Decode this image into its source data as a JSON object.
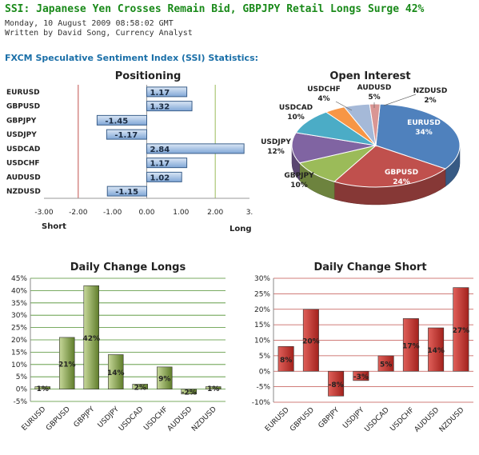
{
  "article": {
    "headline": "SSI: Japanese Yen Crosses Remain Bid, GBPJPY Retail Longs Surge 42%",
    "date": "Monday, 10 August 2009 08:58:02 GMT",
    "byline": "Written by David Song, Currency Analyst",
    "section_title": "FXCM Speculative Sentiment Index (SSI) Statistics:"
  },
  "chart_data": [
    {
      "type": "bar",
      "orientation": "horizontal",
      "title": "Positioning",
      "categories": [
        "EURUSD",
        "GBPUSD",
        "GBPJPY",
        "USDJPY",
        "USDCAD",
        "USDCHF",
        "AUDUSD",
        "NZDUSD"
      ],
      "values": [
        1.17,
        1.32,
        -1.45,
        -1.17,
        2.84,
        1.17,
        1.02,
        -1.15
      ],
      "data_labels": [
        "1.17",
        "1.32",
        "-1.45",
        "-1.17",
        "2.84",
        "1.17",
        "1.02",
        "-1.15"
      ],
      "tick_labels": [
        "-3.00",
        "-2.00",
        "-1.00",
        "0.00",
        "1.00",
        "2.00",
        "3."
      ],
      "xlim": [
        -3,
        3
      ],
      "left_label": "Short",
      "right_label": "Long",
      "colors": {
        "bar": "#8eb4e3",
        "bar_edge": "#3b5f8a",
        "grid_short": "#c0504d",
        "grid_long": "#9bbb59"
      }
    },
    {
      "type": "pie",
      "title": "Open Interest",
      "slices": [
        {
          "name": "EURUSD",
          "percent": 34,
          "color": "#4f81bd"
        },
        {
          "name": "GBPUSD",
          "percent": 24,
          "color": "#c0504d"
        },
        {
          "name": "GBPJPY",
          "percent": 10,
          "color": "#9bbb59"
        },
        {
          "name": "USDJPY",
          "percent": 12,
          "color": "#8064a2"
        },
        {
          "name": "USDCAD",
          "percent": 10,
          "color": "#4bacc6"
        },
        {
          "name": "USDCHF",
          "percent": 4,
          "color": "#f79646"
        },
        {
          "name": "AUDUSD",
          "percent": 5,
          "color": "#a5b9d8"
        },
        {
          "name": "NZDUSD",
          "percent": 2,
          "color": "#d99694"
        }
      ],
      "labels": {
        "EURUSD": [
          "EURUSD",
          "34%"
        ],
        "GBPUSD": [
          "GBPUSD",
          "24%"
        ],
        "GBPJPY": [
          "GBPJPY",
          "10%"
        ],
        "USDJPY": [
          "USDJPY",
          "12%"
        ],
        "USDCAD": [
          "USDCAD",
          "10%"
        ],
        "USDCHF": [
          "USDCHF",
          "4%"
        ],
        "AUDUSD": [
          "AUDUSD",
          "5%"
        ],
        "NZDUSD": [
          "NZDUSD",
          "2%"
        ]
      }
    },
    {
      "type": "bar",
      "title": "Daily Change Longs",
      "categories": [
        "EURUSD",
        "GBPUSD",
        "GBPJPY",
        "USDJPY",
        "USDCAD",
        "USDCHF",
        "AUDUSD",
        "NZDUSD"
      ],
      "values": [
        1,
        21,
        42,
        14,
        2,
        9,
        -2,
        1
      ],
      "data_labels": [
        "1%",
        "21%",
        "42%",
        "14%",
        "2%",
        "9%",
        "-2%",
        "1%"
      ],
      "ylim": [
        -5,
        45
      ],
      "yticks": [
        "-5%",
        "0%",
        "5%",
        "10%",
        "15%",
        "20%",
        "25%",
        "30%",
        "35%",
        "40%",
        "45%"
      ],
      "colors": {
        "bar": "#77933c",
        "grid": "#4e8f2e"
      }
    },
    {
      "type": "bar",
      "title": "Daily Change Short",
      "categories": [
        "EURUSD",
        "GBPUSD",
        "GBPJPY",
        "USDJPY",
        "USDCAD",
        "USDCHF",
        "AUDUSD",
        "NZDUSD"
      ],
      "values": [
        8,
        20,
        -8,
        -3,
        5,
        17,
        14,
        27
      ],
      "data_labels": [
        "8%",
        "20%",
        "-8%",
        "-3%",
        "5%",
        "17%",
        "14%",
        "27%"
      ],
      "ylim": [
        -10,
        30
      ],
      "yticks": [
        "-10%",
        "-5%",
        "0%",
        "5%",
        "10%",
        "15%",
        "20%",
        "25%",
        "30%"
      ],
      "colors": {
        "bar": "#c0392b",
        "grid": "#c0504d"
      }
    }
  ]
}
